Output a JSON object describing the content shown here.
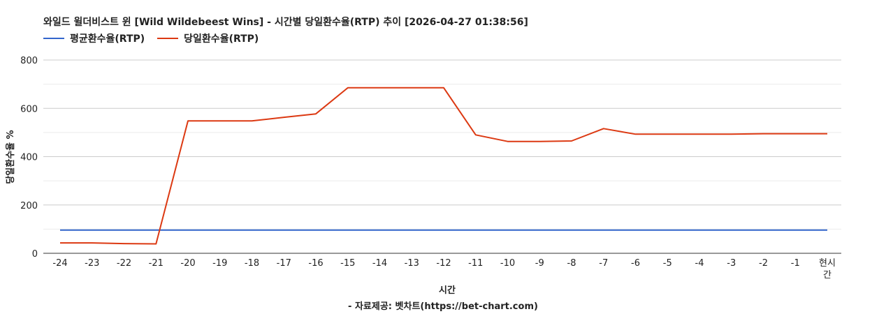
{
  "chart_data": {
    "type": "line",
    "title": "와일드 윌더비스트 윈 [Wild Wildebeest Wins] - 시간별 당일환수율(RTP) 추이 [2026-04-27 01:38:56]",
    "xlabel": "시간",
    "ylabel": "당일환수율 %",
    "source": "- 자료제공: 벳차트(https://bet-chart.com)",
    "categories": [
      "-24",
      "-23",
      "-22",
      "-21",
      "-20",
      "-19",
      "-18",
      "-17",
      "-16",
      "-15",
      "-14",
      "-13",
      "-12",
      "-11",
      "-10",
      "-9",
      "-8",
      "-7",
      "-6",
      "-5",
      "-4",
      "-3",
      "-2",
      "-1",
      "현시간"
    ],
    "series": [
      {
        "name": "평균환수율(RTP)",
        "color": "#3366cc",
        "values": [
          96,
          96,
          96,
          96,
          96,
          96,
          96,
          96,
          96,
          96,
          96,
          96,
          96,
          96,
          96,
          96,
          96,
          96,
          96,
          96,
          96,
          96,
          96,
          96,
          96
        ]
      },
      {
        "name": "당일환수율(RTP)",
        "color": "#dc3912",
        "values": [
          43,
          43,
          40,
          39,
          548,
          548,
          548,
          563,
          577,
          685,
          685,
          685,
          685,
          490,
          463,
          463,
          465,
          516,
          493,
          493,
          493,
          493,
          495,
          495,
          495
        ]
      }
    ],
    "ylim": [
      0,
      800
    ],
    "yticks": [
      0,
      200,
      400,
      600,
      800
    ],
    "grid": true,
    "legend_position": "top-left"
  }
}
